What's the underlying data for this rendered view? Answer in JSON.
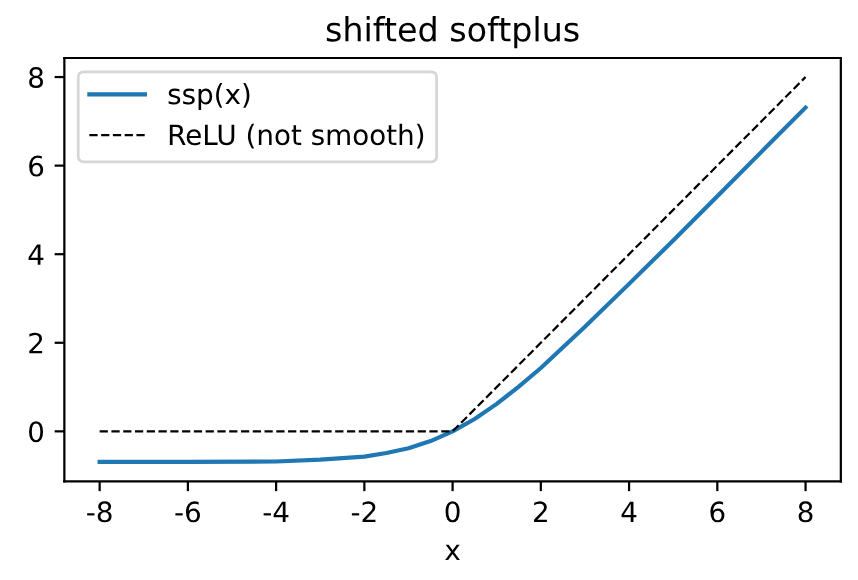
{
  "chart_data": {
    "type": "line",
    "title": "shifted softplus",
    "xlabel": "x",
    "xlim": [
      -8.8,
      8.8
    ],
    "ylim": [
      -1.13,
      8.43
    ],
    "xticks": [
      -8,
      -6,
      -4,
      -2,
      0,
      2,
      4,
      6,
      8
    ],
    "yticks": [
      0,
      2,
      4,
      6,
      8
    ],
    "grid": false,
    "legend": "top left",
    "series": [
      {
        "name": "ssp(x)",
        "color": "#1f77b4",
        "line_style": "solid",
        "x": [
          -8,
          -6,
          -4,
          -3,
          -2,
          -1.5,
          -1,
          -0.5,
          0,
          0.5,
          1,
          1.5,
          2,
          3,
          4,
          5,
          6,
          7,
          8
        ],
        "values": [
          -0.69,
          -0.69,
          -0.68,
          -0.64,
          -0.57,
          -0.49,
          -0.38,
          -0.22,
          0,
          0.28,
          0.62,
          1.01,
          1.43,
          2.36,
          3.33,
          4.31,
          5.31,
          6.31,
          7.31
        ]
      },
      {
        "name": "ReLU (not smooth)",
        "color": "#000000",
        "line_style": "dashed",
        "x": [
          -8,
          0,
          8
        ],
        "values": [
          0,
          0,
          8
        ]
      }
    ]
  }
}
